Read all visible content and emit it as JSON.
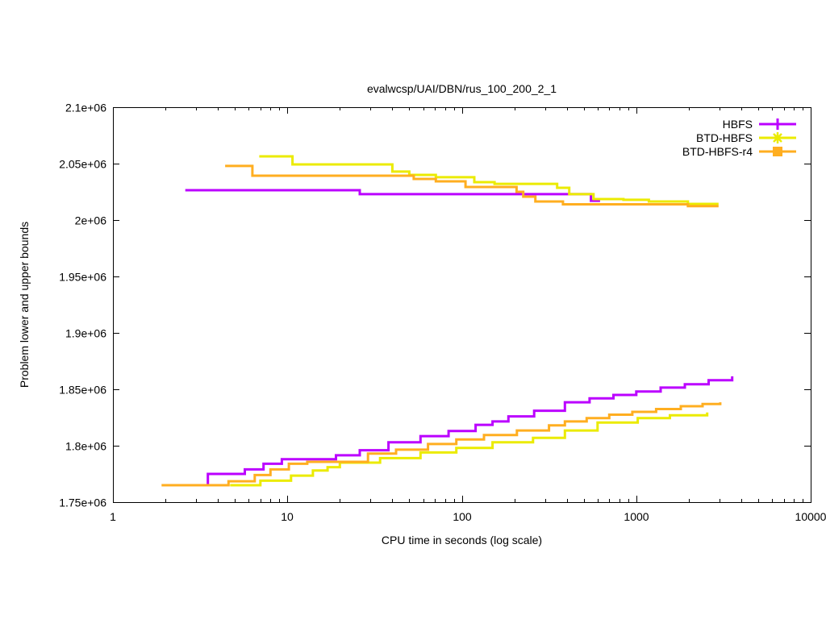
{
  "chart_data": {
    "type": "line",
    "subtype": "step-after-bounds",
    "title": "evalwcsp/UAI/DBN/rus_100_200_2_1",
    "xlabel": "CPU time in seconds (log scale)",
    "ylabel": "Problem lower and upper bounds",
    "x_scale": "log",
    "xlim": [
      1,
      10000
    ],
    "ylim": [
      1750000,
      2100000
    ],
    "grid": false,
    "legend_position": "top-right-inside",
    "x_ticks": [
      {
        "v": 1,
        "label": "1"
      },
      {
        "v": 10,
        "label": "10"
      },
      {
        "v": 100,
        "label": "100"
      },
      {
        "v": 1000,
        "label": "1000"
      },
      {
        "v": 10000,
        "label": "10000"
      }
    ],
    "y_ticks": [
      {
        "v": 1750000,
        "label": "1.75e+06"
      },
      {
        "v": 1800000,
        "label": "1.8e+06"
      },
      {
        "v": 1850000,
        "label": "1.85e+06"
      },
      {
        "v": 1900000,
        "label": "1.9e+06"
      },
      {
        "v": 1950000,
        "label": "1.95e+06"
      },
      {
        "v": 2000000,
        "label": "2e+06"
      },
      {
        "v": 2050000,
        "label": "2.05e+06"
      },
      {
        "v": 2100000,
        "label": "2.1e+06"
      }
    ],
    "series": [
      {
        "name": "HBFS",
        "color": "#bb00ff",
        "marker": "plus",
        "upper": [
          [
            2.6,
            2026400
          ],
          [
            26,
            2022900
          ],
          [
            550,
            2017100
          ],
          [
            620,
            2017100
          ]
        ],
        "lower": [
          [
            3.3,
            1765000
          ],
          [
            3.5,
            1775000
          ],
          [
            5.7,
            1779000
          ],
          [
            7.3,
            1784000
          ],
          [
            9.3,
            1788000
          ],
          [
            19,
            1791500
          ],
          [
            26,
            1796000
          ],
          [
            38,
            1803000
          ],
          [
            58,
            1808500
          ],
          [
            84,
            1813000
          ],
          [
            120,
            1818500
          ],
          [
            150,
            1821500
          ],
          [
            185,
            1826000
          ],
          [
            260,
            1831000
          ],
          [
            390,
            1838500
          ],
          [
            540,
            1842000
          ],
          [
            740,
            1845000
          ],
          [
            1000,
            1848000
          ],
          [
            1380,
            1851500
          ],
          [
            1900,
            1854500
          ],
          [
            2600,
            1858000
          ],
          [
            3550,
            1861500
          ]
        ]
      },
      {
        "name": "BTD-HBFS",
        "color": "#ebeb00",
        "marker": "asterisk",
        "upper": [
          [
            6.9,
            2056400
          ],
          [
            10.7,
            2049300
          ],
          [
            40,
            2042900
          ],
          [
            50,
            2040000
          ],
          [
            71,
            2037900
          ],
          [
            118,
            2033600
          ],
          [
            154,
            2032100
          ],
          [
            352,
            2028600
          ],
          [
            413,
            2022900
          ],
          [
            569,
            2018600
          ],
          [
            845,
            2017900
          ],
          [
            1181,
            2016400
          ],
          [
            1978,
            2014300
          ],
          [
            2965,
            2014300
          ]
        ],
        "lower": [
          [
            4.7,
            1765000
          ],
          [
            7,
            1769000
          ],
          [
            10.5,
            1773500
          ],
          [
            14,
            1778000
          ],
          [
            17,
            1781000
          ],
          [
            20,
            1785000
          ],
          [
            34,
            1789000
          ],
          [
            58,
            1794000
          ],
          [
            93,
            1798000
          ],
          [
            150,
            1803000
          ],
          [
            256,
            1807000
          ],
          [
            390,
            1813500
          ],
          [
            600,
            1820500
          ],
          [
            1020,
            1824500
          ],
          [
            1560,
            1827000
          ],
          [
            2550,
            1829500
          ]
        ]
      },
      {
        "name": "BTD-HBFS-r4",
        "color": "#ffae20",
        "marker": "square",
        "upper": [
          [
            4.4,
            2047900
          ],
          [
            6.3,
            2039300
          ],
          [
            53,
            2036400
          ],
          [
            71,
            2034300
          ],
          [
            105,
            2029300
          ],
          [
            206,
            2025000
          ],
          [
            225,
            2020700
          ],
          [
            264,
            2016400
          ],
          [
            380,
            2013900
          ],
          [
            1978,
            2012300
          ],
          [
            2965,
            2012300
          ]
        ],
        "lower": [
          [
            1.9,
            1765000
          ],
          [
            4.6,
            1768500
          ],
          [
            6.5,
            1774000
          ],
          [
            8.0,
            1779000
          ],
          [
            10.2,
            1784000
          ],
          [
            13,
            1785700
          ],
          [
            29,
            1793000
          ],
          [
            42,
            1796500
          ],
          [
            64,
            1801500
          ],
          [
            93,
            1805500
          ],
          [
            134,
            1809500
          ],
          [
            207,
            1813500
          ],
          [
            316,
            1818000
          ],
          [
            390,
            1821500
          ],
          [
            520,
            1824500
          ],
          [
            700,
            1827500
          ],
          [
            950,
            1830000
          ],
          [
            1300,
            1832500
          ],
          [
            1800,
            1835000
          ],
          [
            2400,
            1837000
          ],
          [
            3030,
            1838500
          ]
        ]
      }
    ]
  }
}
